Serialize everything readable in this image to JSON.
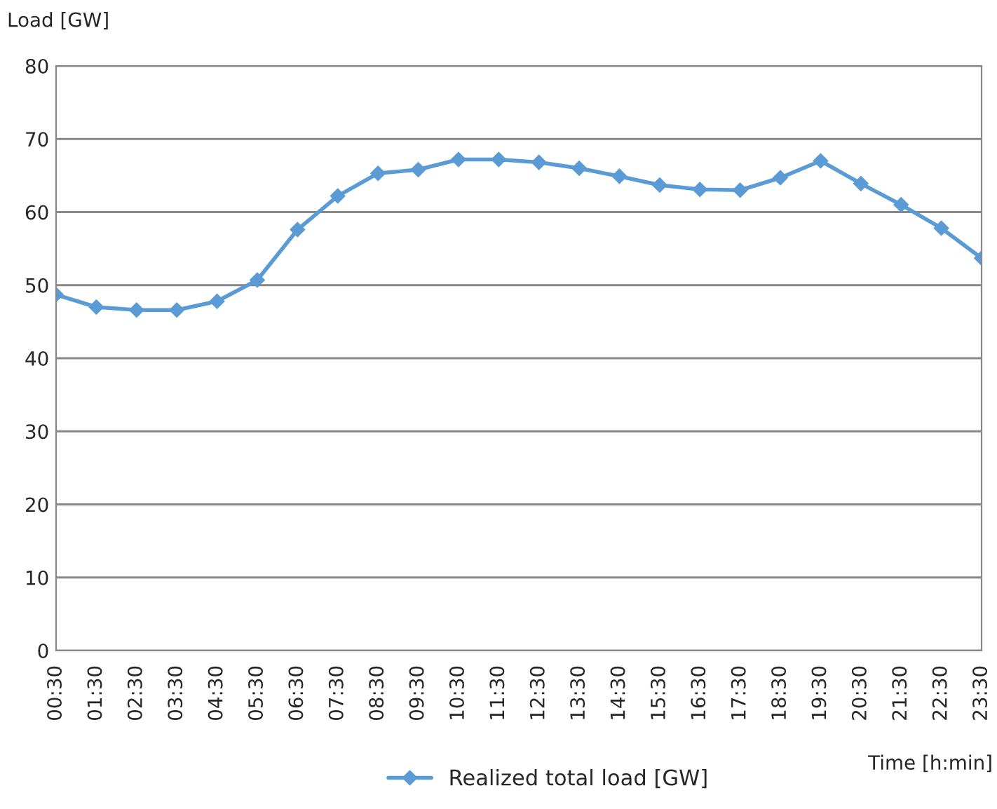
{
  "chart_data": {
    "type": "line",
    "ylabel": "Load [GW]",
    "xlabel": "Time [h:min]",
    "categories": [
      "00:30",
      "01:30",
      "02:30",
      "03:30",
      "04:30",
      "05:30",
      "06:30",
      "07:30",
      "08:30",
      "09:30",
      "10:30",
      "11:30",
      "12:30",
      "13:30",
      "14:30",
      "15:30",
      "16:30",
      "17:30",
      "18:30",
      "19:30",
      "20:30",
      "21:30",
      "22:30",
      "23:30"
    ],
    "series": [
      {
        "name": "Realized total load [GW]",
        "color": "#5b9bd5",
        "values": [
          48.7,
          47.0,
          46.6,
          46.6,
          47.8,
          50.7,
          57.6,
          62.2,
          65.3,
          65.8,
          67.2,
          67.2,
          66.8,
          66.0,
          64.9,
          63.7,
          63.1,
          63.0,
          64.7,
          67.0,
          63.9,
          61.0,
          57.8,
          53.7
        ]
      }
    ],
    "ylim": [
      0,
      80
    ],
    "yticks": [
      0,
      10,
      20,
      30,
      40,
      50,
      60,
      70,
      80
    ],
    "grid": "y",
    "legend": "bottom",
    "marker": "diamond",
    "line_style": "solid"
  }
}
